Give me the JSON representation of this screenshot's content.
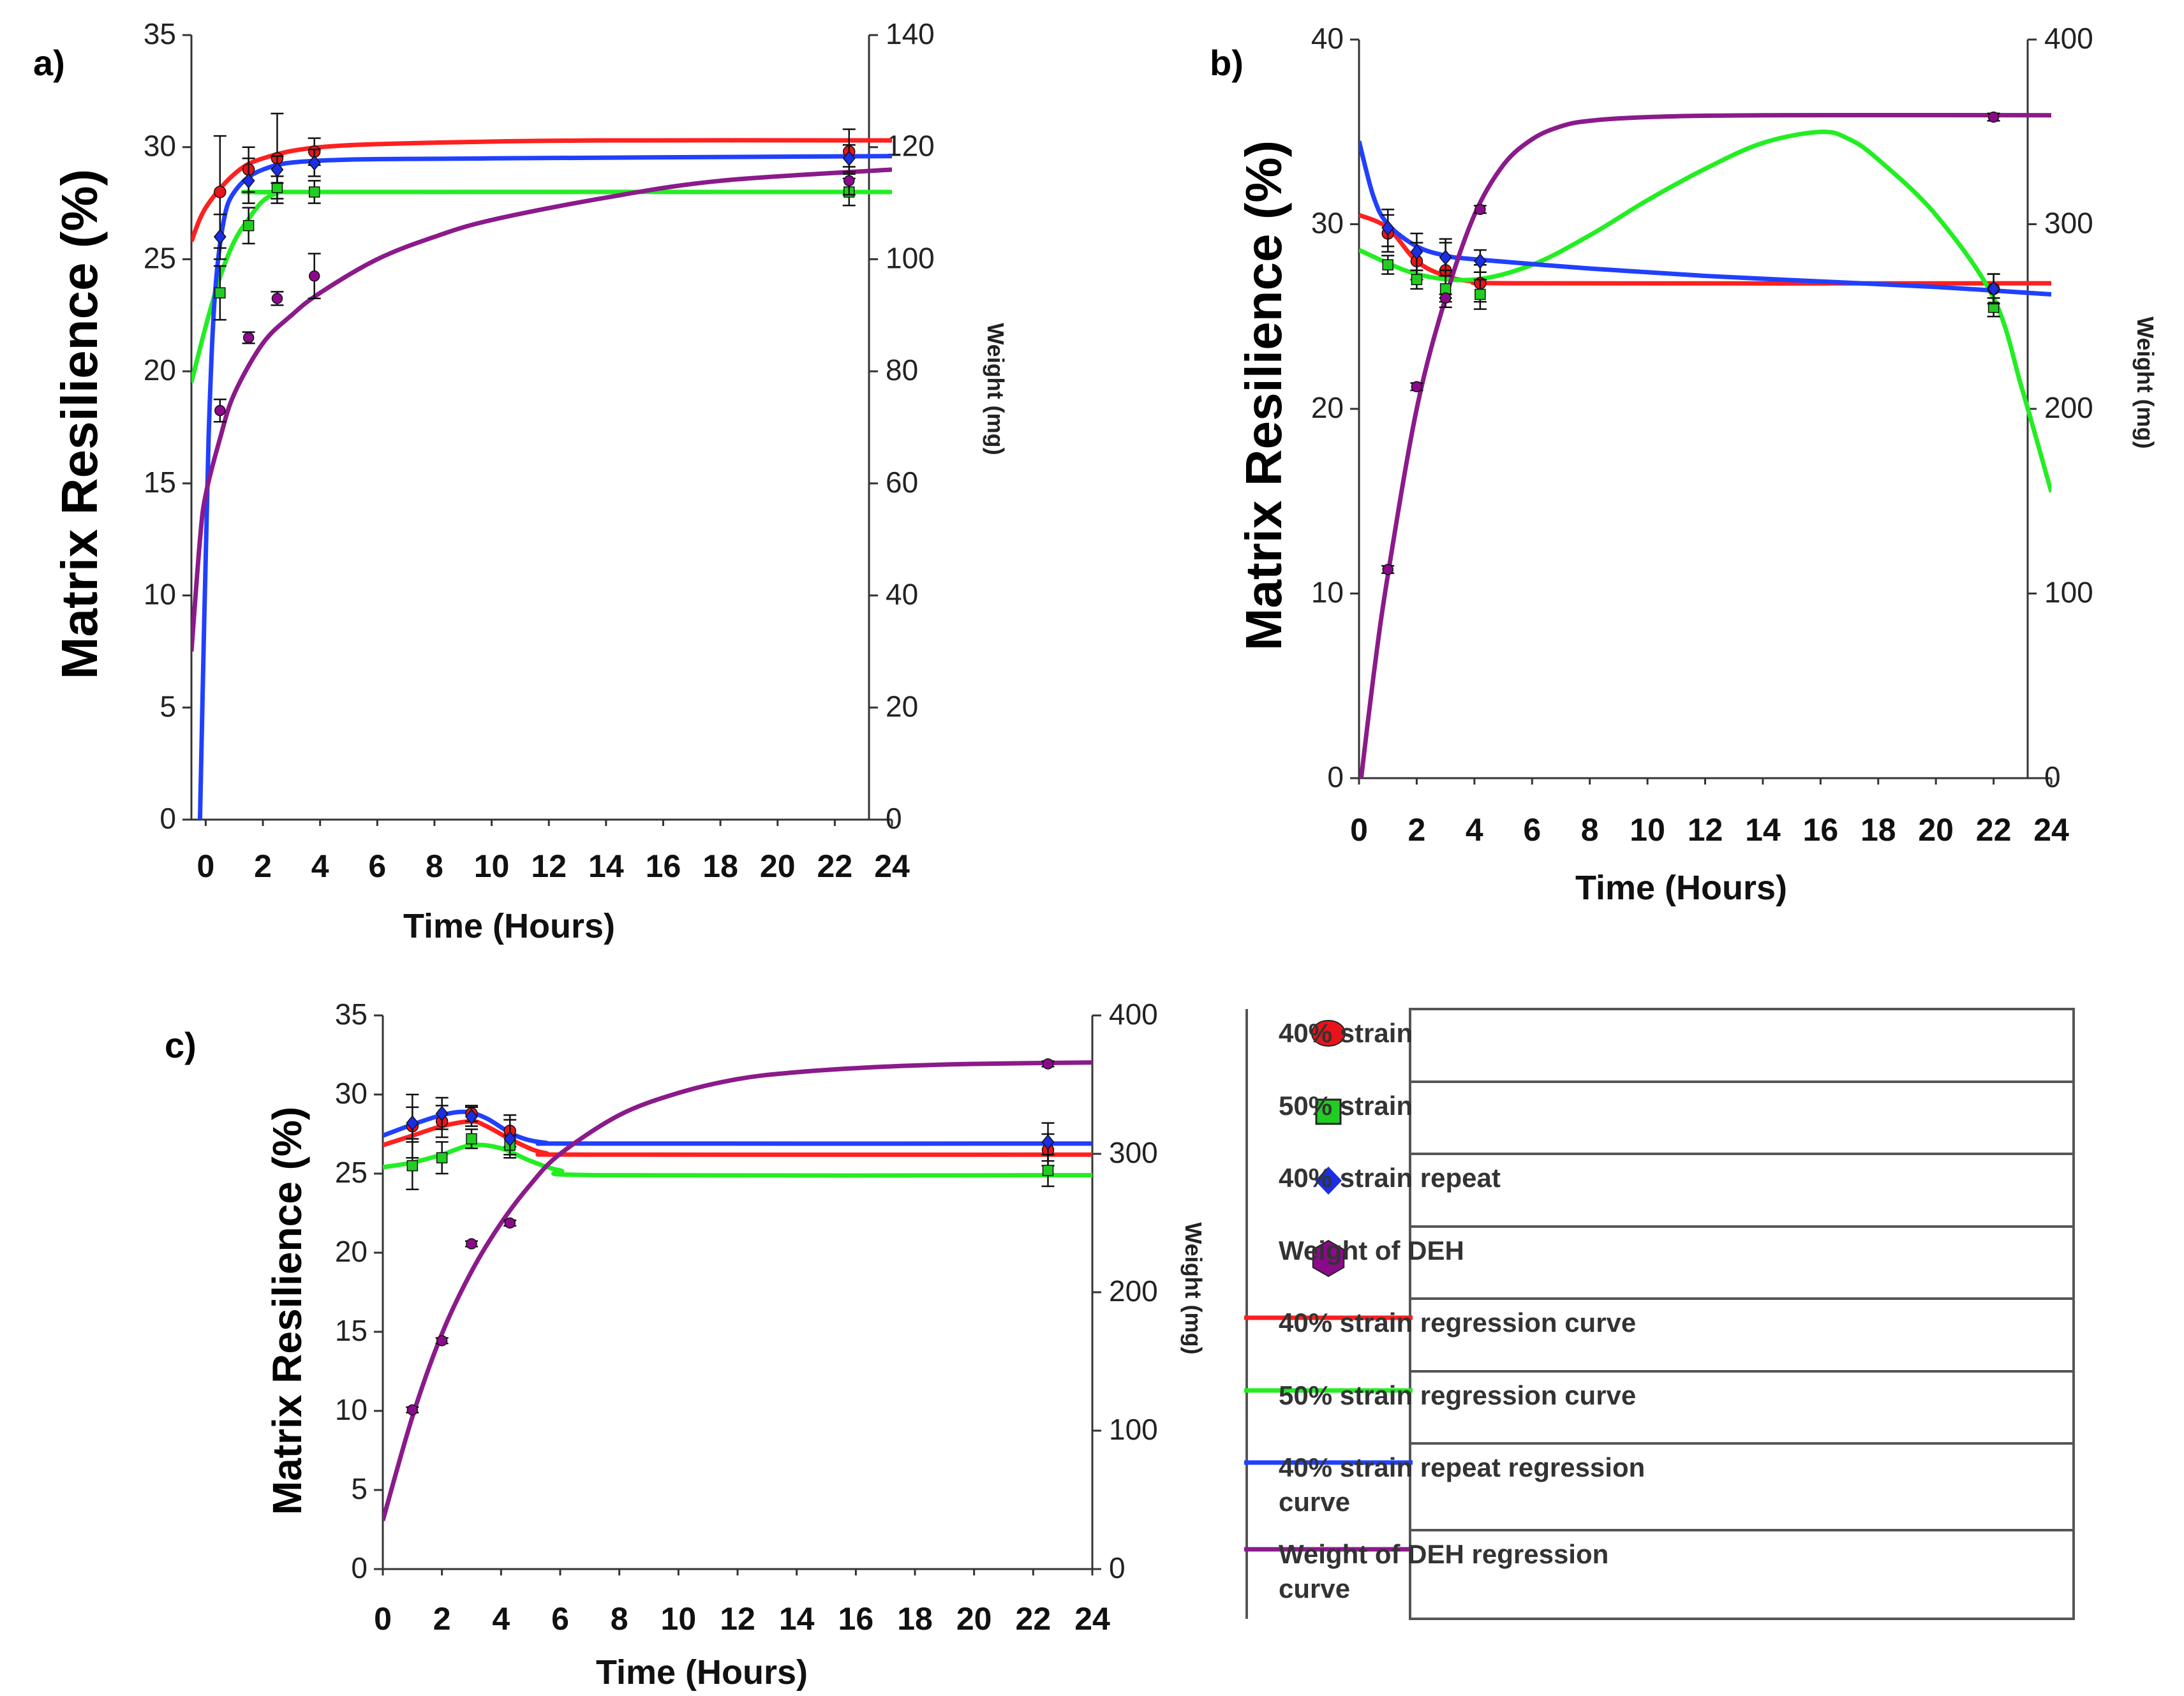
{
  "legend": {
    "items": [
      {
        "label": "40% strain",
        "kind": "marker",
        "shape": "circle",
        "color": "#e8141b"
      },
      {
        "label": "50% strain",
        "kind": "marker",
        "shape": "square",
        "color": "#22cc22"
      },
      {
        "label": "40% strain repeat",
        "kind": "marker",
        "shape": "diamond",
        "color": "#1a2ee6"
      },
      {
        "label": "Weight of DEH",
        "kind": "marker",
        "shape": "hexagon",
        "color": "#8b0a8b"
      },
      {
        "label": "40% strain regression curve",
        "kind": "line",
        "color": "#ff2020"
      },
      {
        "label": "50% strain regression curve",
        "kind": "line",
        "color": "#22ee22"
      },
      {
        "label": "40% strain repeat regression curve",
        "lines": [
          "40% strain repeat regression",
          "curve"
        ],
        "kind": "line",
        "color": "#2040ff"
      },
      {
        "label": "Weight of DEH regression curve",
        "lines": [
          "Weight of DEH regression",
          "curve"
        ],
        "kind": "line",
        "color": "#8b1a8b"
      }
    ]
  },
  "colors": {
    "red": "#ff2020",
    "green": "#22ee22",
    "blue": "#2040ff",
    "purple": "#8b1a8b"
  },
  "chart_data": [
    {
      "panel": "a)",
      "type": "line",
      "xlabel": "Time (Hours)",
      "ylabel": "Matrix Resilience (%)",
      "y2label": "Weight (mg)",
      "xlim": [
        -0.5,
        24
      ],
      "xticks": [
        0,
        2,
        4,
        6,
        8,
        10,
        12,
        14,
        16,
        18,
        20,
        22,
        24
      ],
      "ylim": [
        0,
        35
      ],
      "yticks": [
        0,
        5,
        10,
        15,
        20,
        25,
        30,
        35
      ],
      "y2lim": [
        0,
        140
      ],
      "y2ticks": [
        0,
        20,
        40,
        60,
        80,
        100,
        120,
        140
      ],
      "series": [
        {
          "name": "40% strain",
          "color": "red",
          "axis": "left",
          "points": [
            [
              0.5,
              28,
              2.5
            ],
            [
              1.5,
              29,
              1
            ],
            [
              2.5,
              29.5,
              2
            ],
            [
              3.8,
              29.8,
              0.6
            ],
            [
              22.5,
              29.8,
              1
            ]
          ],
          "curve": [
            [
              -0.5,
              25.8
            ],
            [
              0,
              27.3
            ],
            [
              1,
              28.8
            ],
            [
              2,
              29.5
            ],
            [
              4,
              30
            ],
            [
              8,
              30.2
            ],
            [
              14,
              30.3
            ],
            [
              24,
              30.3
            ]
          ]
        },
        {
          "name": "50% strain",
          "color": "green",
          "axis": "left",
          "points": [
            [
              0.5,
              23.5,
              1.2
            ],
            [
              1.5,
              26.5,
              0.8
            ],
            [
              2.5,
              28.2,
              0.5
            ],
            [
              3.8,
              28,
              0.5
            ],
            [
              22.5,
              28,
              0.6
            ]
          ],
          "curve": [
            [
              -0.5,
              19.5
            ],
            [
              0,
              22
            ],
            [
              0.5,
              24.2
            ],
            [
              1,
              25.8
            ],
            [
              1.5,
              26.8
            ],
            [
              2,
              27.6
            ],
            [
              2.5,
              27.95
            ],
            [
              3,
              28
            ],
            [
              24,
              28
            ]
          ]
        },
        {
          "name": "40% strain repeat",
          "color": "blue",
          "axis": "left",
          "points": [
            [
              0.5,
              26,
              1
            ],
            [
              1.5,
              28.5,
              1
            ],
            [
              2.5,
              29,
              0.6
            ],
            [
              3.8,
              29.3,
              0.6
            ],
            [
              22.5,
              29.5,
              0.6
            ]
          ],
          "curve": [
            [
              -0.2,
              0
            ],
            [
              -0.05,
              9
            ],
            [
              0.1,
              17
            ],
            [
              0.3,
              23
            ],
            [
              0.6,
              26.5
            ],
            [
              1,
              28
            ],
            [
              2,
              29
            ],
            [
              4,
              29.4
            ],
            [
              10,
              29.5
            ],
            [
              24,
              29.6
            ]
          ]
        },
        {
          "name": "Weight of DEH",
          "color": "purple",
          "axis": "right",
          "points": [
            [
              0.5,
              73,
              2
            ],
            [
              1.5,
              86,
              1
            ],
            [
              2.5,
              93,
              1.2
            ],
            [
              3.8,
              97,
              4
            ],
            [
              22.5,
              114,
              2.5
            ]
          ],
          "curve": [
            [
              -0.5,
              30
            ],
            [
              -0.2,
              50
            ],
            [
              0,
              58
            ],
            [
              0.5,
              68
            ],
            [
              1,
              76
            ],
            [
              2,
              85
            ],
            [
              3,
              90
            ],
            [
              4,
              94
            ],
            [
              6,
              100
            ],
            [
              8,
              104
            ],
            [
              10,
              107
            ],
            [
              14,
              111
            ],
            [
              18,
              114
            ],
            [
              24,
              116
            ]
          ]
        }
      ]
    },
    {
      "panel": "b)",
      "type": "line",
      "xlabel": "Time (Hours)",
      "ylabel": "Matrix Resilience (%)",
      "y2label": "Weight (mg)",
      "xlim": [
        0,
        24
      ],
      "xticks": [
        0,
        2,
        4,
        6,
        8,
        10,
        12,
        14,
        16,
        18,
        20,
        22,
        24
      ],
      "ylim": [
        0,
        40
      ],
      "yticks": [
        0,
        10,
        20,
        30,
        40
      ],
      "y2lim": [
        0,
        400
      ],
      "y2ticks": [
        0,
        100,
        200,
        300,
        400
      ],
      "series": [
        {
          "name": "40% strain",
          "color": "red",
          "axis": "left",
          "points": [
            [
              1,
              29.5,
              1
            ],
            [
              2,
              28,
              1
            ],
            [
              3,
              27.5,
              1.5
            ],
            [
              4.2,
              26.8,
              1
            ],
            [
              22,
              26.5,
              0.8
            ]
          ],
          "curve": [
            [
              0,
              30.5
            ],
            [
              1,
              29.8
            ],
            [
              2,
              28
            ],
            [
              3,
              27.2
            ],
            [
              4,
              26.9
            ],
            [
              6,
              26.8
            ],
            [
              24,
              26.8
            ]
          ]
        },
        {
          "name": "50% strain",
          "color": "green",
          "axis": "left",
          "points": [
            [
              1,
              27.8,
              0.5
            ],
            [
              2,
              27,
              0.5
            ],
            [
              3,
              26.5,
              1
            ],
            [
              4.2,
              26.2,
              0.8
            ],
            [
              22,
              25.5,
              0.5
            ]
          ],
          "curve": [
            [
              0,
              28.6
            ],
            [
              2,
              27.3
            ],
            [
              4,
              27.0
            ],
            [
              6,
              27.8
            ],
            [
              8,
              29.4
            ],
            [
              10,
              31.3
            ],
            [
              12,
              33
            ],
            [
              14,
              34.4
            ],
            [
              16,
              35
            ],
            [
              17,
              34.6
            ],
            [
              18,
              33.5
            ],
            [
              20,
              30.5
            ],
            [
              22,
              26
            ],
            [
              23,
              21
            ],
            [
              24,
              15.5
            ]
          ]
        },
        {
          "name": "40% strain repeat",
          "color": "blue",
          "axis": "left",
          "points": [
            [
              1,
              29.8,
              1
            ],
            [
              2,
              28.5,
              1
            ],
            [
              3,
              28.2,
              1
            ],
            [
              4.2,
              28,
              0.6
            ],
            [
              22,
              26.5,
              0.8
            ]
          ],
          "curve": [
            [
              0,
              34.5
            ],
            [
              0.5,
              31.5
            ],
            [
              1,
              30
            ],
            [
              2,
              28.8
            ],
            [
              3,
              28.3
            ],
            [
              4,
              28.1
            ],
            [
              8,
              27.6
            ],
            [
              12,
              27.2
            ],
            [
              16,
              26.9
            ],
            [
              20,
              26.6
            ],
            [
              24,
              26.2
            ]
          ]
        },
        {
          "name": "Weight of DEH",
          "color": "purple",
          "axis": "right",
          "points": [
            [
              1,
              113,
              2
            ],
            [
              2,
              212,
              2
            ],
            [
              3,
              260,
              2
            ],
            [
              4.2,
              308,
              2
            ],
            [
              22,
              358,
              2
            ]
          ],
          "curve": [
            [
              0,
              -10
            ],
            [
              0.5,
              55
            ],
            [
              1,
              110
            ],
            [
              2,
              200
            ],
            [
              3,
              260
            ],
            [
              4,
              305
            ],
            [
              5,
              332
            ],
            [
              6,
              346
            ],
            [
              7,
              353
            ],
            [
              8,
              356
            ],
            [
              10,
              358
            ],
            [
              14,
              359
            ],
            [
              24,
              359
            ]
          ]
        }
      ]
    },
    {
      "panel": "c)",
      "type": "line",
      "xlabel": "Time (Hours)",
      "ylabel": "Matrix Resilience (%)",
      "y2label": "Weight (mg)",
      "xlim": [
        0,
        24
      ],
      "xticks": [
        0,
        2,
        4,
        6,
        8,
        10,
        12,
        14,
        16,
        18,
        20,
        22,
        24
      ],
      "ylim": [
        0,
        35
      ],
      "yticks": [
        0,
        5,
        10,
        15,
        20,
        25,
        30,
        35
      ],
      "y2lim": [
        0,
        400
      ],
      "y2ticks": [
        0,
        100,
        200,
        300,
        400
      ],
      "series": [
        {
          "name": "40% strain",
          "color": "red",
          "axis": "left",
          "points": [
            [
              1,
              28,
              2
            ],
            [
              2,
              28.3,
              1
            ],
            [
              3,
              28.8,
              0.5
            ],
            [
              4.3,
              27.7,
              1
            ],
            [
              22.5,
              26.5,
              1
            ]
          ],
          "curve": [
            [
              0,
              26.8
            ],
            [
              1,
              27.4
            ],
            [
              2,
              28
            ],
            [
              3,
              28.3
            ],
            [
              3.5,
              28
            ],
            [
              4.5,
              27
            ],
            [
              5.5,
              26.3
            ],
            [
              7,
              26.2
            ],
            [
              24,
              26.2
            ]
          ]
        },
        {
          "name": "50% strain",
          "color": "green",
          "axis": "left",
          "points": [
            [
              1,
              25.5,
              1.5
            ],
            [
              2,
              26,
              1
            ],
            [
              3,
              27.2,
              0.6
            ],
            [
              4.3,
              26.8,
              0.6
            ],
            [
              22.5,
              25.2,
              1
            ]
          ],
          "curve": [
            [
              0,
              25.4
            ],
            [
              1,
              25.7
            ],
            [
              2,
              26.2
            ],
            [
              3,
              26.8
            ],
            [
              4,
              26.6
            ],
            [
              5,
              25.8
            ],
            [
              6,
              25.2
            ],
            [
              7.5,
              24.9
            ],
            [
              24,
              24.9
            ]
          ]
        },
        {
          "name": "40% strain repeat",
          "color": "blue",
          "axis": "left",
          "points": [
            [
              1,
              28.2,
              1
            ],
            [
              2,
              28.8,
              1
            ],
            [
              3,
              28.6,
              0.6
            ],
            [
              4.3,
              27.2,
              1.2
            ],
            [
              22.5,
              27,
              1.2
            ]
          ],
          "curve": [
            [
              0,
              27.4
            ],
            [
              1,
              28.1
            ],
            [
              2,
              28.7
            ],
            [
              2.8,
              28.9
            ],
            [
              3.5,
              28.5
            ],
            [
              4.5,
              27.4
            ],
            [
              5.5,
              26.95
            ],
            [
              7,
              26.9
            ],
            [
              24,
              26.9
            ]
          ]
        },
        {
          "name": "Weight of DEH",
          "color": "purple",
          "axis": "right",
          "points": [
            [
              1,
              115,
              2
            ],
            [
              2,
              165,
              2
            ],
            [
              3,
              235,
              2
            ],
            [
              4.3,
              250,
              2
            ],
            [
              22.5,
              365,
              2
            ]
          ],
          "curve": [
            [
              0,
              35
            ],
            [
              1,
              110
            ],
            [
              2,
              170
            ],
            [
              3,
              215
            ],
            [
              4,
              250
            ],
            [
              5,
              278
            ],
            [
              6,
              300
            ],
            [
              8,
              328
            ],
            [
              10,
              344
            ],
            [
              12,
              354
            ],
            [
              14,
              359
            ],
            [
              17,
              363
            ],
            [
              20,
              365
            ],
            [
              24,
              366
            ]
          ]
        }
      ]
    }
  ]
}
